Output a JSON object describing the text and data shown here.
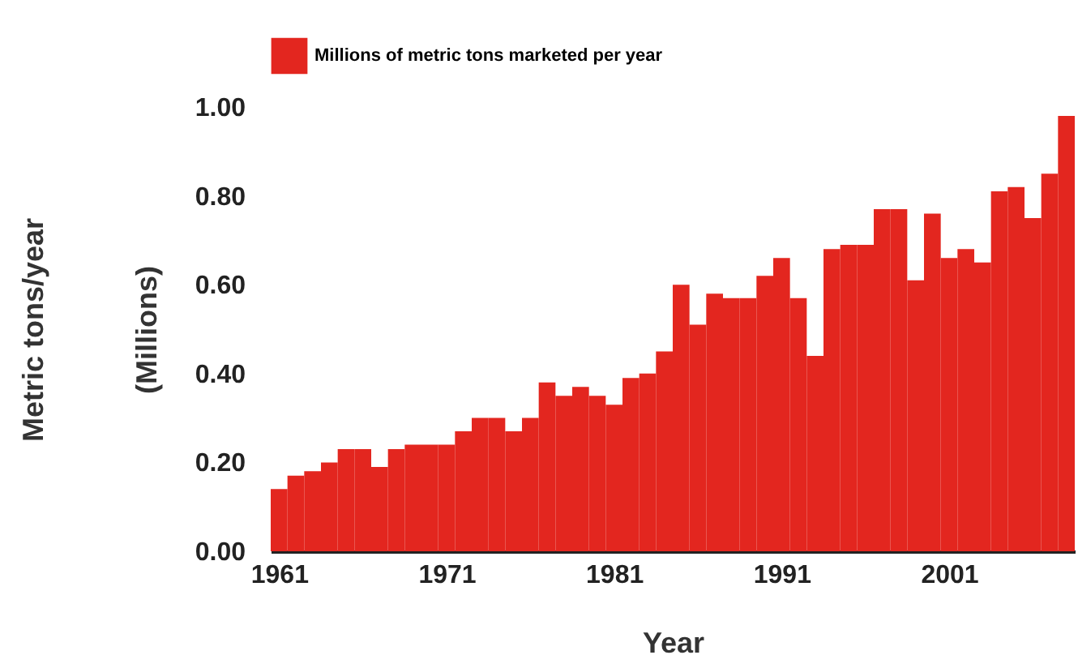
{
  "chart_data": {
    "type": "bar",
    "xlabel": "Year",
    "ylabel": "Metric tons/year",
    "annotations": [
      "(Millions)"
    ],
    "x": [
      1961,
      1962,
      1963,
      1964,
      1965,
      1966,
      1967,
      1968,
      1969,
      1970,
      1971,
      1972,
      1973,
      1974,
      1975,
      1976,
      1977,
      1978,
      1979,
      1980,
      1981,
      1982,
      1983,
      1984,
      1985,
      1986,
      1987,
      1988,
      1989,
      1990,
      1991,
      1992,
      1993,
      1994,
      1995,
      1996,
      1997,
      1998,
      1999,
      2000,
      2001,
      2002,
      2003,
      2004,
      2005,
      2006,
      2007,
      2008
    ],
    "series": [
      {
        "name": "Millions of metric tons marketed per year",
        "color": "#e3261f",
        "values": [
          0.14,
          0.17,
          0.18,
          0.2,
          0.23,
          0.23,
          0.19,
          0.23,
          0.24,
          0.24,
          0.24,
          0.27,
          0.3,
          0.3,
          0.27,
          0.3,
          0.38,
          0.35,
          0.37,
          0.35,
          0.33,
          0.39,
          0.4,
          0.45,
          0.6,
          0.51,
          0.58,
          0.57,
          0.57,
          0.62,
          0.66,
          0.57,
          0.44,
          0.68,
          0.69,
          0.69,
          0.77,
          0.77,
          0.61,
          0.76,
          0.66,
          0.68,
          0.65,
          0.81,
          0.82,
          0.75,
          0.85,
          0.98
        ]
      }
    ],
    "xlim": [
      1960.5,
      2008.5
    ],
    "xticks": [
      1961,
      1971,
      1981,
      1991,
      2001
    ],
    "ylim": [
      0,
      1
    ],
    "yticks": [
      {
        "value": 0,
        "label": "0.00"
      },
      {
        "value": 0.2,
        "label": "0.20"
      },
      {
        "value": 0.4,
        "label": "0.40"
      },
      {
        "value": 0.6,
        "label": "0.60"
      },
      {
        "value": 0.8,
        "label": "0.80"
      },
      {
        "value": 1,
        "label": "1.00"
      }
    ],
    "legend": "top",
    "grid": false
  }
}
